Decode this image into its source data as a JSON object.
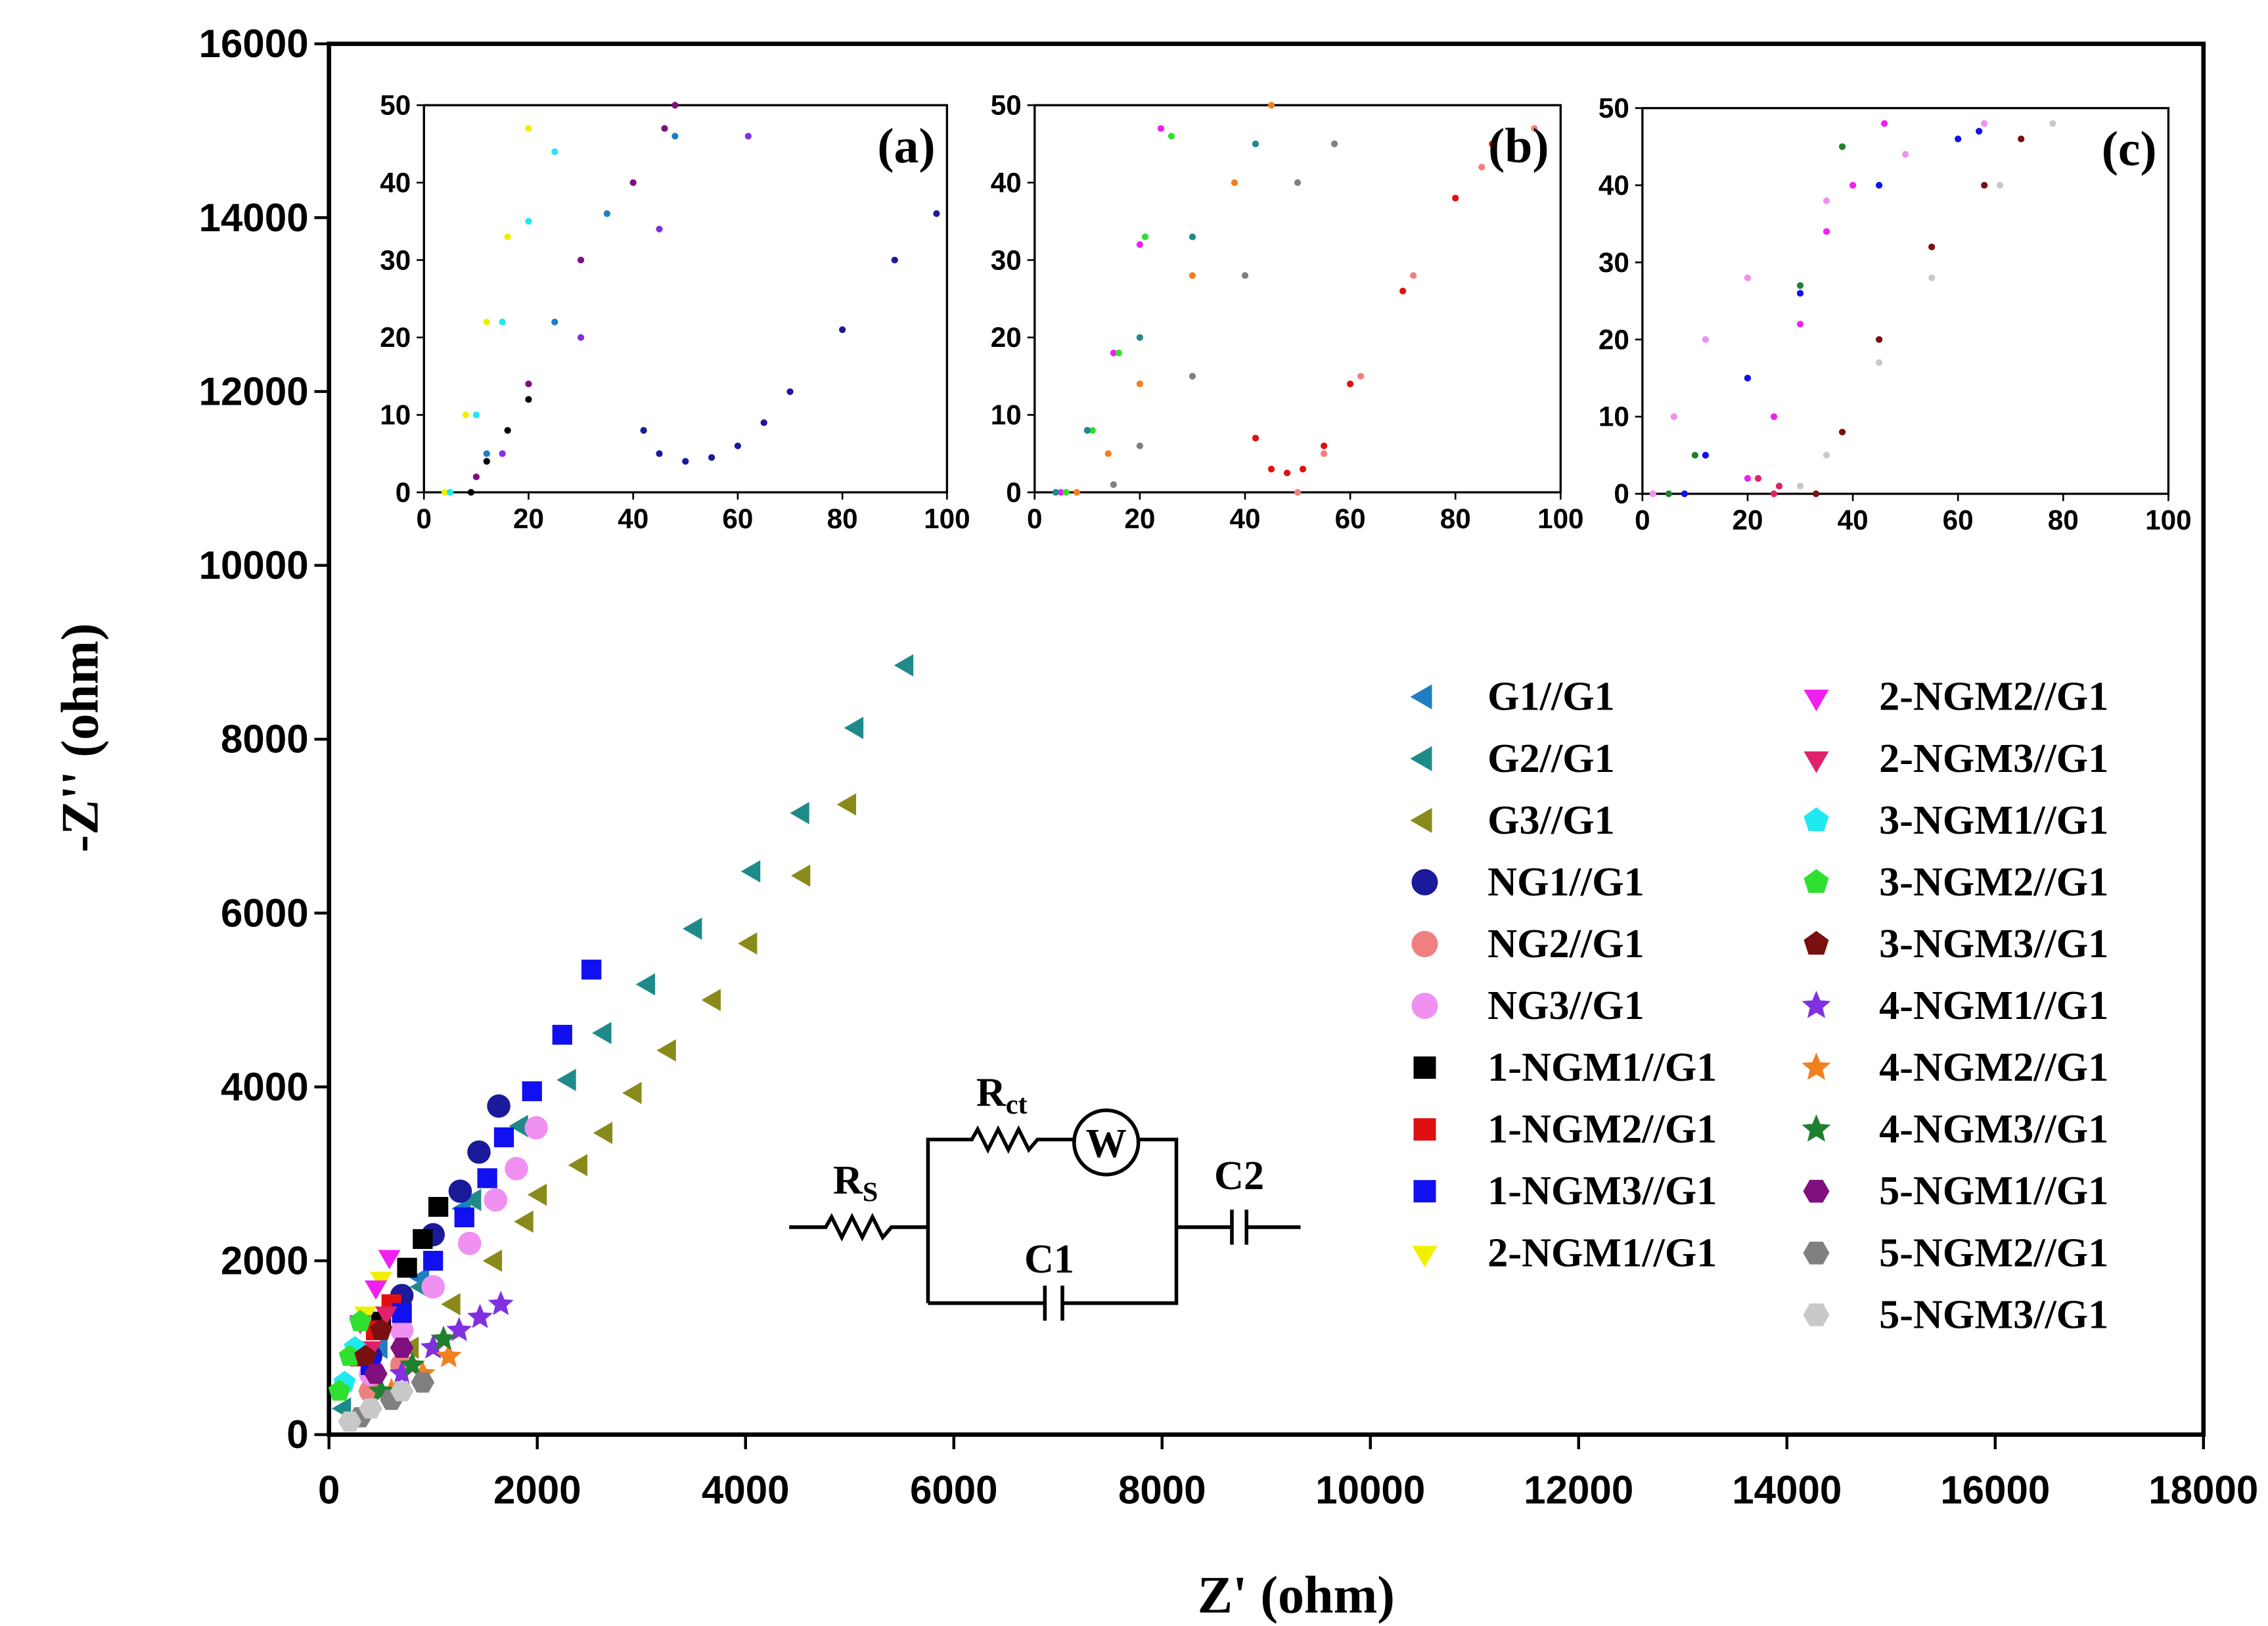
{
  "chart_data": [
    {
      "type": "scatter",
      "xlabel": "Z' (ohm)",
      "ylabel": "-Z'' (ohm)",
      "xlim": [
        0,
        18000
      ],
      "ylim": [
        0,
        16000
      ],
      "xticks": [
        0,
        2000,
        4000,
        6000,
        8000,
        10000,
        12000,
        14000,
        16000,
        18000
      ],
      "yticks": [
        0,
        2000,
        4000,
        6000,
        8000,
        10000,
        12000,
        14000,
        16000
      ],
      "legend": "right",
      "series": [
        {
          "name": "G1//G1",
          "color": "#1e7fc4",
          "marker": "triangle-left",
          "x": [
            1300,
            900,
            500
          ],
          "y": [
            2600,
            1800,
            1000
          ]
        },
        {
          "name": "G2//G1",
          "color": "#1f8a8a",
          "marker": "triangle-left",
          "x": [
            5550,
            5070,
            4550,
            4080,
            3520,
            3070,
            2650,
            2310,
            1850,
            1400,
            900,
            400,
            150
          ],
          "y": [
            8850,
            8130,
            7150,
            6480,
            5820,
            5180,
            4620,
            4080,
            3550,
            2700,
            1700,
            800,
            300
          ]
        },
        {
          "name": "G3//G1",
          "color": "#8a8a1a",
          "marker": "triangle-left",
          "x": [
            5000,
            4560,
            4050,
            3700,
            3270,
            2940,
            2660,
            2420,
            2030,
            1900,
            1600,
            1200,
            800,
            400
          ],
          "y": [
            7250,
            6430,
            5650,
            5000,
            4420,
            3930,
            3470,
            3100,
            2760,
            2450,
            2000,
            1500,
            1000,
            500
          ]
        },
        {
          "name": "NG1//G1",
          "color": "#1a1a9a",
          "marker": "circle",
          "x": [
            1630,
            1440,
            1260,
            1000,
            700,
            400
          ],
          "y": [
            3780,
            3250,
            2800,
            2300,
            1600,
            900
          ]
        },
        {
          "name": "NG2//G1",
          "color": "#f08080",
          "marker": "circle",
          "x": [
            700,
            400
          ],
          "y": [
            800,
            500
          ]
        },
        {
          "name": "NG3//G1",
          "color": "#f090f0",
          "marker": "circle",
          "x": [
            1990,
            1800,
            1600,
            1350,
            1000,
            700,
            400
          ],
          "y": [
            3530,
            3060,
            2700,
            2200,
            1700,
            1200,
            700
          ]
        },
        {
          "name": "1-NGM1//G1",
          "color": "#000000",
          "marker": "square",
          "x": [
            1050,
            900,
            750,
            500,
            300
          ],
          "y": [
            2620,
            2250,
            1920,
            1300,
            900
          ]
        },
        {
          "name": "1-NGM2//G1",
          "color": "#e01010",
          "marker": "square",
          "x": [
            600,
            450,
            300
          ],
          "y": [
            1500,
            1200,
            900
          ]
        },
        {
          "name": "1-NGM3//G1",
          "color": "#1010f0",
          "marker": "square",
          "x": [
            2520,
            2240,
            1950,
            1680,
            1520,
            1300,
            1000,
            700,
            400
          ],
          "y": [
            5350,
            4600,
            3950,
            3420,
            2950,
            2500,
            2000,
            1400,
            800
          ]
        },
        {
          "name": "2-NGM1//G1",
          "color": "#f0f000",
          "marker": "triangle-down",
          "x": [
            500,
            350
          ],
          "y": [
            1800,
            1400
          ]
        },
        {
          "name": "2-NGM2//G1",
          "color": "#f020f0",
          "marker": "triangle-down",
          "x": [
            580,
            450,
            300
          ],
          "y": [
            2050,
            1700,
            1300
          ]
        },
        {
          "name": "2-NGM3//G1",
          "color": "#e0206a",
          "marker": "triangle-down",
          "x": [
            550,
            400
          ],
          "y": [
            1400,
            1000
          ]
        },
        {
          "name": "3-NGM1//G1",
          "color": "#20e8f0",
          "marker": "pentagon",
          "x": [
            250,
            150
          ],
          "y": [
            1000,
            600
          ]
        },
        {
          "name": "3-NGM2//G1",
          "color": "#30e030",
          "marker": "pentagon",
          "x": [
            300,
            200,
            100
          ],
          "y": [
            1300,
            900,
            500
          ]
        },
        {
          "name": "3-NGM3//G1",
          "color": "#7a1010",
          "marker": "pentagon",
          "x": [
            500,
            350
          ],
          "y": [
            1200,
            900
          ]
        },
        {
          "name": "4-NGM1//G1",
          "color": "#8030e0",
          "marker": "star",
          "x": [
            1650,
            1450,
            1250,
            1000,
            700
          ],
          "y": [
            1500,
            1350,
            1200,
            1000,
            700
          ]
        },
        {
          "name": "4-NGM2//G1",
          "color": "#f08020",
          "marker": "star",
          "x": [
            1150,
            900,
            600
          ],
          "y": [
            900,
            700,
            500
          ]
        },
        {
          "name": "4-NGM3//G1",
          "color": "#208030",
          "marker": "star",
          "x": [
            1100,
            800,
            500
          ],
          "y": [
            1100,
            800,
            500
          ]
        },
        {
          "name": "5-NGM1//G1",
          "color": "#801080",
          "marker": "hexagon",
          "x": [
            700,
            450
          ],
          "y": [
            1000,
            700
          ]
        },
        {
          "name": "5-NGM2//G1",
          "color": "#808080",
          "marker": "hexagon",
          "x": [
            900,
            600,
            300
          ],
          "y": [
            600,
            400,
            200
          ]
        },
        {
          "name": "5-NGM3//G1",
          "color": "#c8c8c8",
          "marker": "hexagon",
          "x": [
            700,
            400,
            200
          ],
          "y": [
            500,
            300,
            150
          ]
        }
      ]
    },
    {
      "type": "scatter",
      "title": "(a)",
      "xlim": [
        0,
        100
      ],
      "ylim": [
        0,
        50
      ],
      "xticks": [
        0,
        20,
        40,
        60,
        80,
        100
      ],
      "yticks": [
        0,
        10,
        20,
        30,
        40,
        50
      ],
      "series": [
        {
          "color": "#f0f000",
          "x": [
            4,
            8,
            12,
            16,
            20
          ],
          "y": [
            0,
            10,
            22,
            33,
            47
          ]
        },
        {
          "color": "#20e8f0",
          "x": [
            5,
            10,
            15,
            20,
            25
          ],
          "y": [
            0,
            10,
            22,
            35,
            44
          ]
        },
        {
          "color": "#000000",
          "x": [
            9,
            12,
            16,
            20
          ],
          "y": [
            0,
            4,
            8,
            12
          ]
        },
        {
          "color": "#801080",
          "x": [
            10,
            20,
            30,
            40,
            46,
            48
          ],
          "y": [
            2,
            14,
            30,
            40,
            47,
            50
          ]
        },
        {
          "color": "#1e7fc4",
          "x": [
            12,
            25,
            35,
            48
          ],
          "y": [
            5,
            22,
            36,
            46
          ]
        },
        {
          "color": "#8030e0",
          "x": [
            15,
            30,
            45,
            62
          ],
          "y": [
            5,
            20,
            34,
            46
          ]
        },
        {
          "color": "#1a1a9a",
          "x": [
            42,
            45,
            50,
            55,
            60,
            65,
            70,
            80,
            90,
            98
          ],
          "y": [
            8,
            5,
            4,
            4.5,
            6,
            9,
            13,
            21,
            30,
            36
          ]
        }
      ]
    },
    {
      "type": "scatter",
      "title": "(b)",
      "xlim": [
        0,
        100
      ],
      "ylim": [
        0,
        50
      ],
      "xticks": [
        0,
        20,
        40,
        60,
        80,
        100
      ],
      "yticks": [
        0,
        10,
        20,
        30,
        40,
        50
      ],
      "series": [
        {
          "color": "#f020f0",
          "x": [
            5,
            10,
            15,
            20,
            24
          ],
          "y": [
            0,
            8,
            18,
            32,
            47
          ]
        },
        {
          "color": "#30e030",
          "x": [
            6,
            11,
            16,
            21,
            26
          ],
          "y": [
            0,
            8,
            18,
            33,
            46
          ]
        },
        {
          "color": "#1f8a8a",
          "x": [
            4,
            10,
            20,
            30,
            42
          ],
          "y": [
            0,
            8,
            20,
            33,
            45
          ]
        },
        {
          "color": "#f08020",
          "x": [
            8,
            14,
            20,
            30,
            38,
            45
          ],
          "y": [
            0,
            5,
            14,
            28,
            40,
            50
          ]
        },
        {
          "color": "#808080",
          "x": [
            15,
            20,
            30,
            40,
            50,
            57
          ],
          "y": [
            1,
            6,
            15,
            28,
            40,
            45
          ]
        },
        {
          "color": "#e01010",
          "x": [
            42,
            45,
            48,
            51,
            55,
            60,
            70,
            80,
            87
          ],
          "y": [
            7,
            3,
            2.5,
            3,
            6,
            14,
            26,
            38,
            45
          ]
        },
        {
          "color": "#f08080",
          "x": [
            50,
            55,
            62,
            72,
            85,
            95
          ],
          "y": [
            0,
            5,
            15,
            28,
            42,
            47
          ]
        }
      ]
    },
    {
      "type": "scatter",
      "title": "(c)",
      "xlim": [
        0,
        100
      ],
      "ylim": [
        0,
        50
      ],
      "xticks": [
        0,
        20,
        40,
        60,
        80,
        100
      ],
      "yticks": [
        0,
        10,
        20,
        30,
        40,
        50
      ],
      "series": [
        {
          "color": "#f090f0",
          "x": [
            2,
            6,
            12,
            20,
            35,
            50,
            65
          ],
          "y": [
            0,
            10,
            20,
            28,
            38,
            44,
            48
          ]
        },
        {
          "color": "#208030",
          "x": [
            5,
            10,
            20,
            30,
            38
          ],
          "y": [
            0,
            5,
            15,
            27,
            45
          ]
        },
        {
          "color": "#f020f0",
          "x": [
            20,
            25,
            30,
            35,
            40,
            46
          ],
          "y": [
            2,
            10,
            22,
            34,
            40,
            48
          ]
        },
        {
          "color": "#1010f0",
          "x": [
            8,
            12,
            20,
            30,
            45,
            60,
            64
          ],
          "y": [
            0,
            5,
            15,
            26,
            40,
            46,
            47
          ]
        },
        {
          "color": "#e0206a",
          "x": [
            22,
            26,
            25
          ],
          "y": [
            2,
            1,
            0
          ]
        },
        {
          "color": "#7a1010",
          "x": [
            33,
            38,
            45,
            55,
            65,
            72
          ],
          "y": [
            0,
            8,
            20,
            32,
            40,
            46
          ]
        },
        {
          "color": "#c8c8c8",
          "x": [
            30,
            35,
            45,
            55,
            68,
            78
          ],
          "y": [
            1,
            5,
            17,
            28,
            40,
            48
          ]
        }
      ]
    }
  ],
  "circuit": {
    "labels": [
      {
        "text": "R",
        "sub": "ct"
      },
      {
        "text": "W"
      },
      {
        "text": "R",
        "sub": "S"
      },
      {
        "text": "C2"
      },
      {
        "text": "C1"
      }
    ]
  }
}
